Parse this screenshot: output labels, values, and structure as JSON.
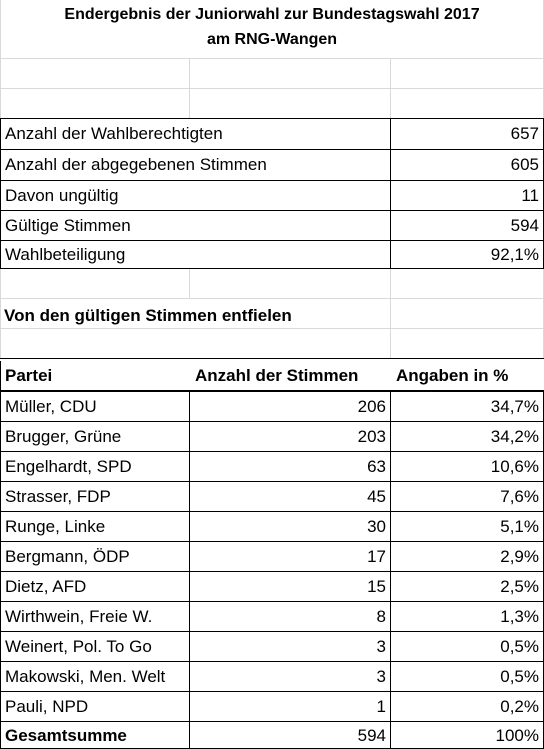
{
  "title": {
    "line1": "Endergebnis der Juniorwahl zur Bundestagswahl 2017",
    "line2": "am RNG-Wangen"
  },
  "summary": [
    {
      "label": "Anzahl der Wahlberechtigten",
      "value": "657"
    },
    {
      "label": "Anzahl der abgegebenen Stimmen",
      "value": "605"
    },
    {
      "label": "Davon ungültig",
      "value": "11"
    },
    {
      "label": "Gültige Stimmen",
      "value": "594"
    },
    {
      "label": "Wahlbeteiligung",
      "value": "92,1%"
    }
  ],
  "section_heading": "Von den gültigen Stimmen entfielen",
  "table": {
    "headers": [
      "Partei",
      "Anzahl der Stimmen",
      "Angaben in %"
    ],
    "rows": [
      [
        "Müller, CDU",
        "206",
        "34,7%"
      ],
      [
        "Brugger, Grüne",
        "203",
        "34,2%"
      ],
      [
        "Engelhardt, SPD",
        "63",
        "10,6%"
      ],
      [
        "Strasser, FDP",
        "45",
        "7,6%"
      ],
      [
        "Runge, Linke",
        "30",
        "5,1%"
      ],
      [
        "Bergmann, ÖDP",
        "17",
        "2,9%"
      ],
      [
        "Dietz, AFD",
        "15",
        "2,5%"
      ],
      [
        "Wirthwein, Freie W.",
        "8",
        "1,3%"
      ],
      [
        "Weinert, Pol. To Go",
        "3",
        "0,5%"
      ],
      [
        "Makowski, Men. Welt",
        "3",
        "0,5%"
      ],
      [
        "Pauli, NPD",
        "1",
        "0,2%"
      ]
    ],
    "total": [
      "Gesamtsumme",
      "594",
      "100%"
    ]
  }
}
